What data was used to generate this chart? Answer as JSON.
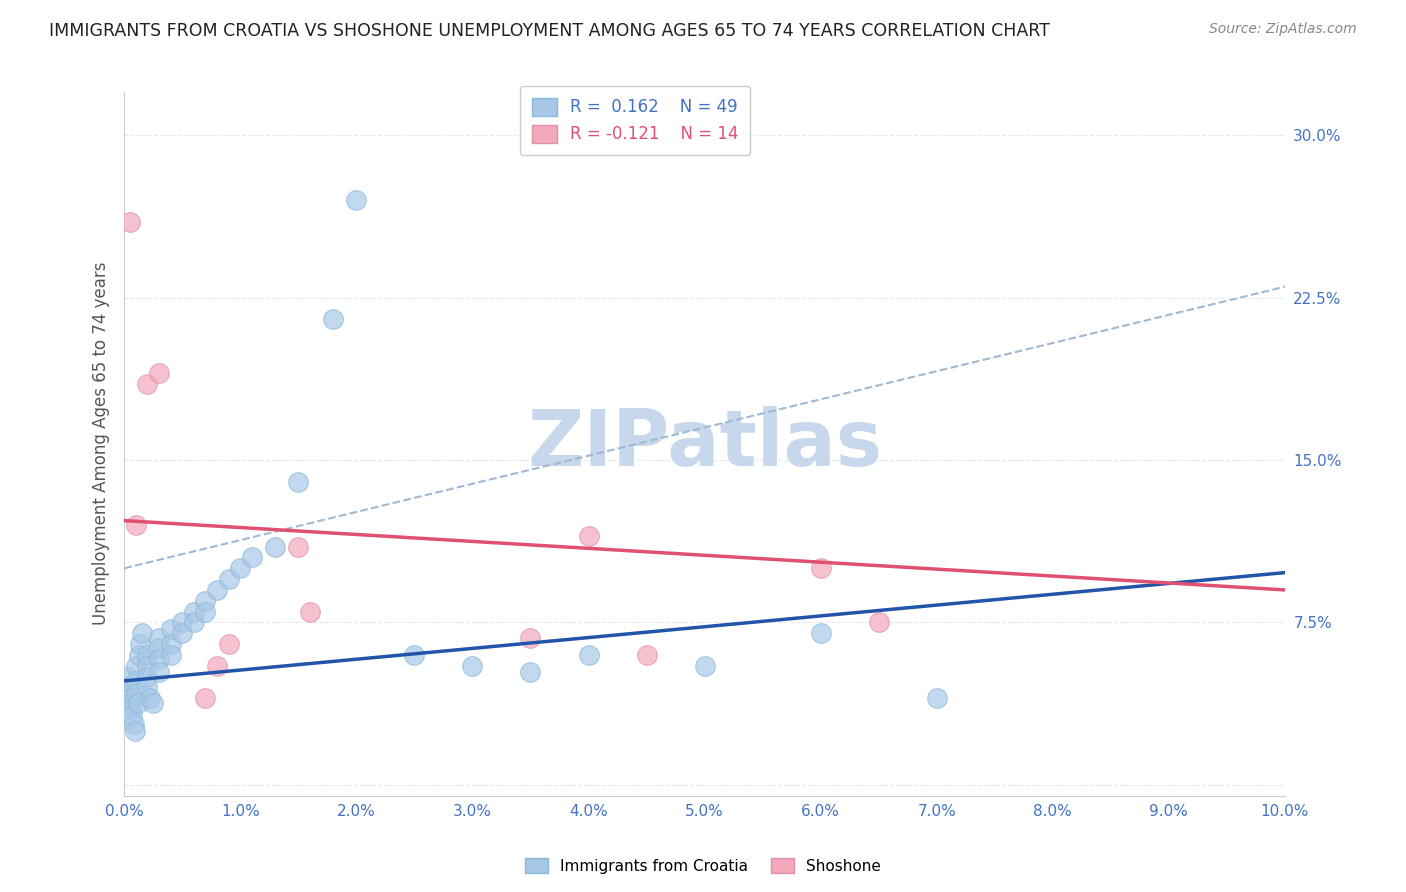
{
  "title": "IMMIGRANTS FROM CROATIA VS SHOSHONE UNEMPLOYMENT AMONG AGES 65 TO 74 YEARS CORRELATION CHART",
  "source": "Source: ZipAtlas.com",
  "ylabel": "Unemployment Among Ages 65 to 74 years",
  "xlim": [
    0.0,
    0.1
  ],
  "ylim": [
    -0.005,
    0.32
  ],
  "xticks": [
    0.0,
    0.01,
    0.02,
    0.03,
    0.04,
    0.05,
    0.06,
    0.07,
    0.08,
    0.09,
    0.1
  ],
  "xticklabels": [
    "0.0%",
    "1.0%",
    "2.0%",
    "3.0%",
    "4.0%",
    "5.0%",
    "6.0%",
    "7.0%",
    "8.0%",
    "9.0%",
    "10.0%"
  ],
  "yticks": [
    0.0,
    0.075,
    0.15,
    0.225,
    0.3
  ],
  "yticklabels": [
    "",
    "7.5%",
    "15.0%",
    "22.5%",
    "30.0%"
  ],
  "r_blue": 0.162,
  "n_blue": 49,
  "r_pink": -0.121,
  "n_pink": 14,
  "blue_color": "#a8c8e8",
  "pink_color": "#f4a8bc",
  "blue_line_color": "#2255aa",
  "pink_line_color": "#e05070",
  "gray_dash_color": "#a0b8d0",
  "watermark": "ZIPatlas",
  "watermark_color": "#c8d8ec",
  "blue_scatter_x": [
    0.0002,
    0.0003,
    0.0004,
    0.0005,
    0.0006,
    0.0007,
    0.0008,
    0.0009,
    0.001,
    0.001,
    0.001,
    0.0012,
    0.0013,
    0.0014,
    0.0015,
    0.002,
    0.002,
    0.002,
    0.002,
    0.0022,
    0.0025,
    0.003,
    0.003,
    0.003,
    0.003,
    0.004,
    0.004,
    0.004,
    0.005,
    0.005,
    0.006,
    0.006,
    0.007,
    0.007,
    0.008,
    0.009,
    0.01,
    0.011,
    0.013,
    0.015,
    0.018,
    0.02,
    0.025,
    0.03,
    0.035,
    0.04,
    0.05,
    0.06,
    0.07
  ],
  "blue_scatter_y": [
    0.05,
    0.045,
    0.04,
    0.038,
    0.035,
    0.032,
    0.028,
    0.025,
    0.055,
    0.048,
    0.042,
    0.038,
    0.06,
    0.065,
    0.07,
    0.06,
    0.055,
    0.05,
    0.045,
    0.04,
    0.038,
    0.068,
    0.063,
    0.058,
    0.052,
    0.072,
    0.065,
    0.06,
    0.075,
    0.07,
    0.08,
    0.075,
    0.085,
    0.08,
    0.09,
    0.095,
    0.1,
    0.105,
    0.11,
    0.14,
    0.215,
    0.27,
    0.06,
    0.055,
    0.052,
    0.06,
    0.055,
    0.07,
    0.04
  ],
  "pink_scatter_x": [
    0.0005,
    0.001,
    0.002,
    0.003,
    0.015,
    0.016,
    0.035,
    0.04,
    0.045,
    0.06,
    0.065,
    0.007,
    0.008,
    0.009
  ],
  "pink_scatter_y": [
    0.26,
    0.12,
    0.185,
    0.19,
    0.11,
    0.08,
    0.068,
    0.115,
    0.06,
    0.1,
    0.075,
    0.04,
    0.055,
    0.065
  ],
  "background_color": "#ffffff",
  "grid_color": "#e8e8e8",
  "blue_line_x0": 0.0,
  "blue_line_y0": 0.048,
  "blue_line_x1": 0.1,
  "blue_line_y1": 0.098,
  "pink_line_x0": 0.0,
  "pink_line_y0": 0.122,
  "pink_line_x1": 0.1,
  "pink_line_y1": 0.09,
  "gray_line_x0": 0.0,
  "gray_line_y0": 0.1,
  "gray_line_x1": 0.1,
  "gray_line_y1": 0.23
}
